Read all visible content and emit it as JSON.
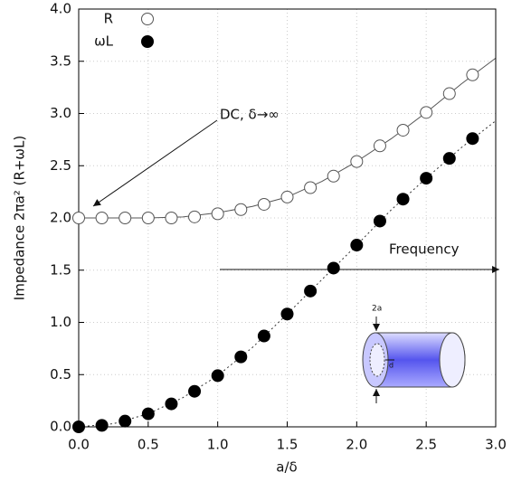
{
  "chart_data": {
    "type": "scatter",
    "x_label": "a/δ",
    "y_label": "Impedance 2πa² (R+ωL)",
    "x": [
      0,
      0.1667,
      0.3333,
      0.5,
      0.6667,
      0.8333,
      1.0,
      1.1667,
      1.3333,
      1.5,
      1.6667,
      1.8333,
      2.0,
      2.1667,
      2.3333,
      2.5,
      2.6667,
      2.8333
    ],
    "series": [
      {
        "name": "R",
        "color": "#555555",
        "filled": false,
        "values": [
          2.0,
          2.0,
          2.0,
          2.0,
          2.0,
          2.01,
          2.04,
          2.08,
          2.13,
          2.2,
          2.29,
          2.4,
          2.54,
          2.69,
          2.84,
          3.01,
          3.19,
          3.37
        ]
      },
      {
        "name": "ωL",
        "color": "#000000",
        "filled": true,
        "values": [
          0.0,
          0.014,
          0.055,
          0.125,
          0.22,
          0.34,
          0.49,
          0.67,
          0.87,
          1.08,
          1.3,
          1.52,
          1.74,
          1.97,
          2.18,
          2.38,
          2.57,
          2.76
        ]
      }
    ],
    "curves": [
      {
        "dashed": false,
        "color": "#555555",
        "x": [
          0,
          0.25,
          0.5,
          0.75,
          1.0,
          1.25,
          1.5,
          1.75,
          2.0,
          2.25,
          2.5,
          2.75,
          3.0
        ],
        "values": [
          2.0,
          2.0,
          2.0,
          2.01,
          2.05,
          2.11,
          2.2,
          2.35,
          2.54,
          2.76,
          3.01,
          3.28,
          3.53
        ]
      },
      {
        "dashed": true,
        "color": "#333333",
        "x": [
          0,
          0.25,
          0.5,
          0.75,
          1.0,
          1.25,
          1.5,
          1.75,
          2.0,
          2.25,
          2.5,
          2.75,
          3.0
        ],
        "values": [
          0.0,
          0.03,
          0.125,
          0.28,
          0.49,
          0.76,
          1.08,
          1.41,
          1.74,
          2.08,
          2.38,
          2.67,
          2.93
        ]
      }
    ],
    "xlim": [
      0,
      3
    ],
    "ylim": [
      0,
      4
    ],
    "xticks": [
      {
        "value": 0,
        "label": "0.0"
      },
      0.5,
      {
        "value": 1,
        "label": "1.0"
      },
      1.5,
      {
        "value": 2,
        "label": "2.0"
      },
      2.5,
      {
        "value": 3,
        "label": "3.0"
      }
    ],
    "yticks": [
      {
        "value": 0,
        "label": "0.0"
      },
      0.5,
      {
        "value": 1,
        "label": "1.0"
      },
      1.5,
      {
        "value": 2,
        "label": "2.0"
      },
      2.5,
      {
        "value": 3,
        "label": "3.0"
      },
      3.5,
      {
        "value": 4,
        "label": "4.0"
      }
    ],
    "grid": true,
    "legend": "top-left",
    "annotations": [
      "DC, δ→∞",
      "Frequency"
    ],
    "inset_labels": [
      "2a",
      "d"
    ]
  }
}
